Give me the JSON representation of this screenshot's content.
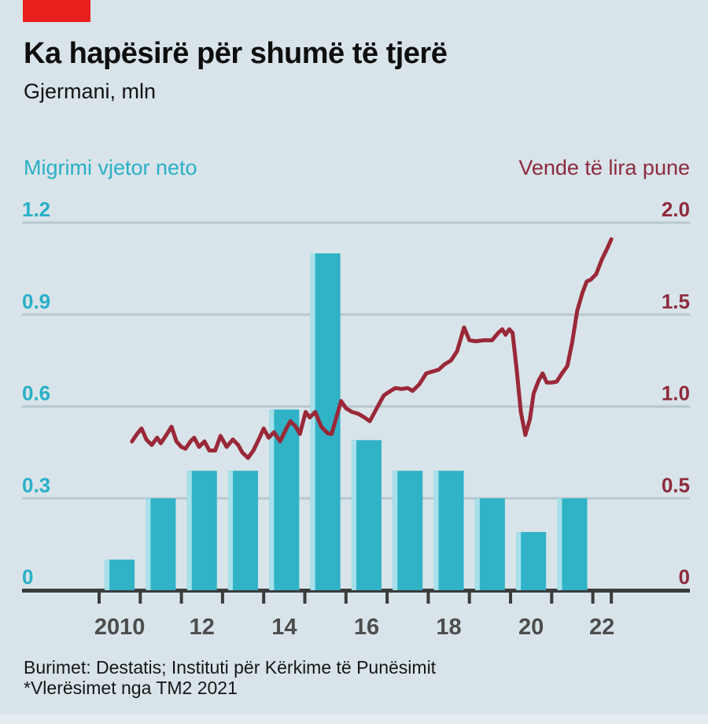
{
  "chart_data": {
    "type": "bar+line",
    "title": "Ka hapësirë për shumë të tjerë",
    "subtitle": "Gjermani, mln",
    "source": "Burimet: Destatis; Instituti për Kërkime të Punësimit",
    "note": "*Vlerësimet nga TM2 2021",
    "background": "#D8E4E9",
    "tag_color": "#E8211E",
    "grid_color": "#B9C8CF",
    "axis_color": "#3C3C3C",
    "grid_on": true,
    "left_axis": {
      "label": "Migrimi vjetor neto",
      "color": "#29B0C8",
      "ticks": [
        0,
        0.3,
        0.6,
        0.9,
        1.2
      ],
      "tick_labels": [
        "0",
        "0.3",
        "0.6",
        "0.9",
        "1.2"
      ],
      "range": [
        0,
        1.2
      ],
      "position": "left"
    },
    "right_axis": {
      "label": "Vende të lira pune",
      "color": "#8F2A3D",
      "ticks": [
        0,
        0.5,
        1.0,
        1.5,
        2.0
      ],
      "tick_labels": [
        "0",
        "0.5",
        "1.0",
        "1.5",
        "2.0"
      ],
      "range": [
        0,
        2.0
      ],
      "position": "right"
    },
    "x_axis": {
      "tick_years": [
        2010,
        2011,
        2012,
        2013,
        2014,
        2015,
        2016,
        2017,
        2018,
        2019,
        2020,
        2021,
        2022,
        2022.45
      ],
      "labels": [
        {
          "text": "2010",
          "year": 2010.5
        },
        {
          "text": "12",
          "year": 2012.5
        },
        {
          "text": "14",
          "year": 2014.5
        },
        {
          "text": "16",
          "year": 2016.5
        },
        {
          "text": "18",
          "year": 2018.5
        },
        {
          "text": "20",
          "year": 2020.5
        },
        {
          "text": "22",
          "year": 2022.22
        }
      ],
      "label_color": "#4D4D4D"
    },
    "bars": {
      "series": "Migrimi vjetor neto",
      "color": "#30B2C7",
      "highlight": "#A7E0EA",
      "years": [
        2010,
        2011,
        2012,
        2013,
        2014,
        2015,
        2016,
        2017,
        2018,
        2019,
        2020,
        2021
      ],
      "values": [
        0.1,
        0.3,
        0.39,
        0.39,
        0.59,
        1.1,
        0.49,
        0.39,
        0.39,
        0.3,
        0.19,
        0.3
      ]
    },
    "line": {
      "series": "Vende të lira pune",
      "color": "#9A2838",
      "points": [
        [
          2010.8,
          0.81
        ],
        [
          2010.92,
          0.85
        ],
        [
          2011.03,
          0.88
        ],
        [
          2011.15,
          0.82
        ],
        [
          2011.28,
          0.79
        ],
        [
          2011.41,
          0.83
        ],
        [
          2011.5,
          0.8
        ],
        [
          2011.62,
          0.84
        ],
        [
          2011.76,
          0.89
        ],
        [
          2011.88,
          0.81
        ],
        [
          2012.0,
          0.78
        ],
        [
          2012.1,
          0.77
        ],
        [
          2012.22,
          0.81
        ],
        [
          2012.31,
          0.83
        ],
        [
          2012.43,
          0.78
        ],
        [
          2012.56,
          0.81
        ],
        [
          2012.68,
          0.76
        ],
        [
          2012.82,
          0.76
        ],
        [
          2012.95,
          0.84
        ],
        [
          2013.1,
          0.78
        ],
        [
          2013.25,
          0.82
        ],
        [
          2013.38,
          0.79
        ],
        [
          2013.48,
          0.75
        ],
        [
          2013.62,
          0.72
        ],
        [
          2013.75,
          0.76
        ],
        [
          2013.88,
          0.82
        ],
        [
          2014.0,
          0.88
        ],
        [
          2014.12,
          0.83
        ],
        [
          2014.25,
          0.86
        ],
        [
          2014.4,
          0.81
        ],
        [
          2014.55,
          0.88
        ],
        [
          2014.65,
          0.92
        ],
        [
          2014.78,
          0.89
        ],
        [
          2014.88,
          0.85
        ],
        [
          2015.02,
          0.97
        ],
        [
          2015.12,
          0.94
        ],
        [
          2015.25,
          0.97
        ],
        [
          2015.4,
          0.89
        ],
        [
          2015.55,
          0.855
        ],
        [
          2015.65,
          0.85
        ],
        [
          2015.78,
          0.95
        ],
        [
          2015.88,
          1.03
        ],
        [
          2016.0,
          0.99
        ],
        [
          2016.15,
          0.97
        ],
        [
          2016.3,
          0.96
        ],
        [
          2016.45,
          0.94
        ],
        [
          2016.58,
          0.92
        ],
        [
          2016.7,
          0.97
        ],
        [
          2016.82,
          1.02
        ],
        [
          2016.92,
          1.06
        ],
        [
          2017.05,
          1.08
        ],
        [
          2017.2,
          1.1
        ],
        [
          2017.35,
          1.095
        ],
        [
          2017.5,
          1.1
        ],
        [
          2017.62,
          1.085
        ],
        [
          2017.78,
          1.12
        ],
        [
          2017.95,
          1.18
        ],
        [
          2018.1,
          1.19
        ],
        [
          2018.25,
          1.2
        ],
        [
          2018.4,
          1.23
        ],
        [
          2018.55,
          1.25
        ],
        [
          2018.7,
          1.3
        ],
        [
          2018.87,
          1.43
        ],
        [
          2019.0,
          1.36
        ],
        [
          2019.15,
          1.355
        ],
        [
          2019.35,
          1.36
        ],
        [
          2019.55,
          1.36
        ],
        [
          2019.7,
          1.4
        ],
        [
          2019.8,
          1.42
        ],
        [
          2019.88,
          1.39
        ],
        [
          2019.97,
          1.42
        ],
        [
          2020.05,
          1.4
        ],
        [
          2020.15,
          1.2
        ],
        [
          2020.25,
          0.97
        ],
        [
          2020.36,
          0.845
        ],
        [
          2020.47,
          0.93
        ],
        [
          2020.56,
          1.07
        ],
        [
          2020.68,
          1.14
        ],
        [
          2020.78,
          1.18
        ],
        [
          2020.88,
          1.13
        ],
        [
          2021.0,
          1.13
        ],
        [
          2021.12,
          1.135
        ],
        [
          2021.25,
          1.18
        ],
        [
          2021.38,
          1.22
        ],
        [
          2021.5,
          1.35
        ],
        [
          2021.62,
          1.52
        ],
        [
          2021.75,
          1.62
        ],
        [
          2021.85,
          1.68
        ],
        [
          2021.95,
          1.69
        ],
        [
          2022.08,
          1.72
        ],
        [
          2022.22,
          1.8
        ],
        [
          2022.35,
          1.86
        ],
        [
          2022.45,
          1.91
        ]
      ]
    }
  }
}
